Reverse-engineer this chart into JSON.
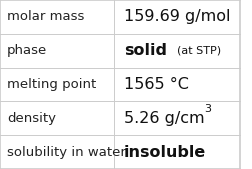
{
  "rows": [
    {
      "label": "molar mass",
      "value": "159.69 g/mol",
      "value_parts": null
    },
    {
      "label": "phase",
      "value": "solid",
      "value_suffix": "(at STP)"
    },
    {
      "label": "melting point",
      "value": "1565 °C",
      "value_parts": null
    },
    {
      "label": "density",
      "value": "5.26 g/cm",
      "superscript": "3"
    },
    {
      "label": "solubility in water",
      "value": "insoluble",
      "value_parts": null
    }
  ],
  "col_split": 0.475,
  "background_color": "#ffffff",
  "border_color": "#cccccc",
  "label_fontsize": 9.5,
  "value_fontsize": 11.5,
  "suffix_fontsize": 8.0,
  "label_color": "#222222",
  "value_color": "#111111",
  "bold_values": [
    "solid",
    "insoluble"
  ]
}
